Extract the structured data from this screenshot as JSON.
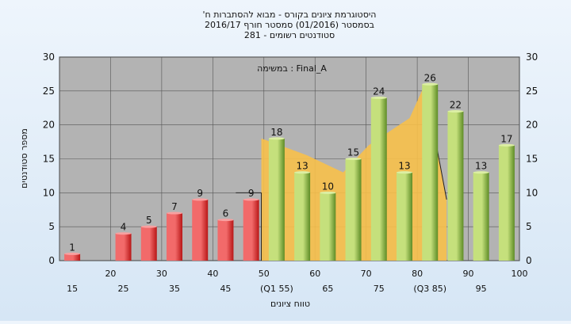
{
  "chart_data": {
    "type": "bar",
    "title_lines": [
      "'היסטוגרמת ציונים בקורס - מבוא להסתברות ח",
      "בסמסטר  (01/2016)  סמסטר חורף 2016/17",
      "סטודנטים רשומים - 281"
    ],
    "annotation": "במשימה : Final_A",
    "ylabel": "מספר סטודנטים",
    "xlabel": "טווח ציונים",
    "ylim": [
      0,
      30
    ],
    "yticks": [
      0,
      5,
      10,
      15,
      20,
      25,
      30
    ],
    "x_label_rows": [
      {
        "row": 1,
        "labels": [
          "20",
          "30",
          "40",
          "50",
          "60",
          "70",
          "80",
          "90",
          "100"
        ],
        "slots": [
          1,
          3,
          5,
          7,
          9,
          11,
          13,
          15,
          17
        ]
      },
      {
        "row": 2,
        "labels": [
          "15",
          "25",
          "35",
          "45",
          "(Q1 55)",
          "65",
          "75",
          "(Q3 85)",
          "95"
        ],
        "slots": [
          0,
          2,
          4,
          6,
          8,
          10,
          12,
          14,
          16
        ]
      }
    ],
    "categories": [
      "15",
      "20",
      "25",
      "30",
      "35",
      "40",
      "45",
      "50",
      "55",
      "60",
      "65",
      "70",
      "75",
      "80",
      "85",
      "90",
      "95",
      "100"
    ],
    "values": [
      1,
      0,
      4,
      5,
      7,
      9,
      6,
      9,
      18,
      13,
      10,
      15,
      24,
      13,
      26,
      22,
      13,
      17
    ],
    "bar_groups": [
      "fail",
      "fail",
      "fail",
      "fail",
      "fail",
      "fail",
      "fail",
      "fail",
      "pass",
      "pass",
      "pass",
      "pass",
      "pass",
      "pass",
      "pass",
      "pass",
      "pass",
      "pass"
    ],
    "colors": {
      "fail_light": "#f26a6a",
      "fail_dark": "#b81616",
      "pass_light": "#c5e07c",
      "pass_dark": "#5e8c26",
      "plot_bg": "#b3b3b3",
      "area": "#f7c04a",
      "grid": "#555555"
    },
    "area_series_y": [
      18,
      15.5,
      13,
      17,
      21,
      26,
      9
    ],
    "grid": true
  }
}
